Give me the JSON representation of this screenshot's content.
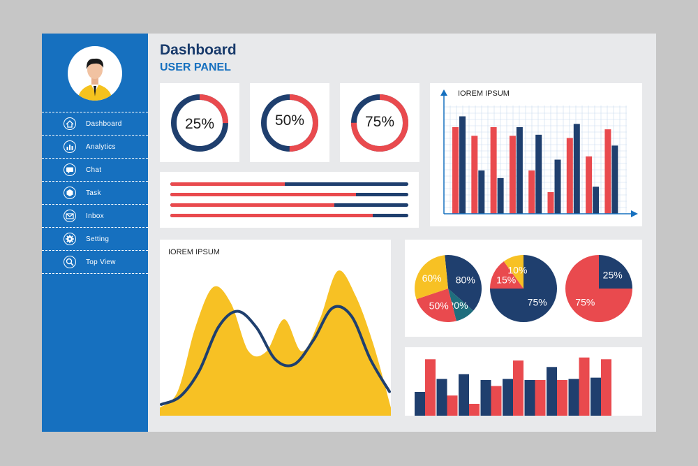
{
  "header": {
    "title": "Dashboard",
    "subtitle": "USER PANEL"
  },
  "sidebar": {
    "items": [
      {
        "label": "Dashboard",
        "icon": "home-icon"
      },
      {
        "label": "Analytics",
        "icon": "bar-chart-icon"
      },
      {
        "label": "Chat",
        "icon": "chat-icon"
      },
      {
        "label": "Task",
        "icon": "task-icon"
      },
      {
        "label": "Inbox",
        "icon": "inbox-icon"
      },
      {
        "label": "Setting",
        "icon": "gear-icon"
      },
      {
        "label": "Top View",
        "icon": "search-icon"
      }
    ]
  },
  "colors": {
    "navy": "#1f3f6e",
    "red": "#e94a4e",
    "yellow": "#f7c124",
    "blue": "#1670bf"
  },
  "chart_data": [
    {
      "type": "donut",
      "id": "donut-25",
      "value": 25,
      "label": "25%"
    },
    {
      "type": "donut",
      "id": "donut-50",
      "value": 50,
      "label": "50%"
    },
    {
      "type": "donut",
      "id": "donut-75",
      "value": 75,
      "label": "75%"
    },
    {
      "type": "progress",
      "values": [
        0.48,
        0.78,
        0.69,
        0.85
      ]
    },
    {
      "type": "bar",
      "id": "main-bar",
      "title": "IOREM IPSUM",
      "grid": true,
      "ylim": [
        0,
        100
      ],
      "series": [
        {
          "color": "red",
          "values": [
            80,
            72,
            80,
            72,
            40,
            20,
            70,
            53,
            78
          ]
        },
        {
          "color": "navy",
          "values": [
            90,
            40,
            33,
            80,
            73,
            50,
            83,
            25,
            63
          ]
        }
      ]
    },
    {
      "type": "area",
      "id": "wave-chart",
      "title": "IOREM IPSUM",
      "area_values": [
        5,
        15,
        55,
        80,
        70,
        40,
        40,
        60,
        40,
        60,
        90,
        75,
        45,
        5
      ],
      "line_values": [
        7,
        12,
        28,
        55,
        65,
        55,
        35,
        32,
        47,
        67,
        62,
        35,
        15
      ]
    },
    {
      "type": "pie",
      "id": "pie-1",
      "slices": [
        {
          "value": 80,
          "label": "80%",
          "color": "navy"
        },
        {
          "value": 20,
          "label": "20%",
          "color": "teal"
        },
        {
          "value": 50,
          "label": "50%",
          "color": "red"
        },
        {
          "value": 60,
          "label": "60%",
          "color": "yellow"
        }
      ]
    },
    {
      "type": "pie",
      "id": "pie-2",
      "slices": [
        {
          "value": 75,
          "label": "75%",
          "color": "navy"
        },
        {
          "value": 15,
          "label": "15%",
          "color": "red"
        },
        {
          "value": 10,
          "label": "10%",
          "color": "yellow"
        }
      ]
    },
    {
      "type": "pie",
      "id": "pie-3",
      "slices": [
        {
          "value": 25,
          "label": "25%",
          "color": "navy"
        },
        {
          "value": 75,
          "label": "75%",
          "color": "red"
        }
      ]
    },
    {
      "type": "bar",
      "id": "bottom-bar",
      "ylim": [
        0,
        100
      ],
      "series": [
        {
          "color": "navy",
          "values": [
            40,
            62,
            70,
            60,
            62,
            60,
            82,
            62,
            64
          ]
        },
        {
          "color": "red",
          "values": [
            95,
            34,
            20,
            50,
            93,
            60,
            60,
            98,
            95
          ]
        }
      ]
    }
  ]
}
